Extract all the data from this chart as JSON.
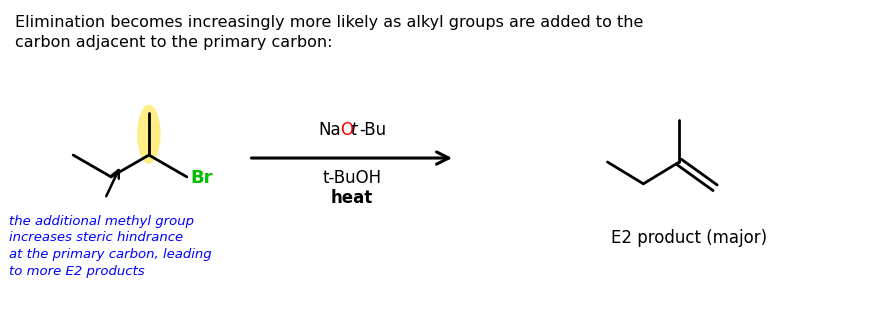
{
  "bg_color": "#ffffff",
  "title_line1": "Elimination becomes increasingly more likely as alkyl groups are added to the",
  "title_line2": "carbon adjacent to the primary carbon:",
  "title_fontsize": 11.5,
  "title_color": "#000000",
  "reagent1_O_color": "#ff0000",
  "product_label": "E2 product (major)",
  "blue_text_lines": [
    "the additional methyl group",
    "increases steric hindrance",
    "at the primary carbon, leading",
    "to more E2 products"
  ],
  "blue_color": "#0000ff",
  "highlight_color": "#ffee88",
  "br_color": "#00bb00",
  "black": "#000000",
  "lw": 2.0
}
